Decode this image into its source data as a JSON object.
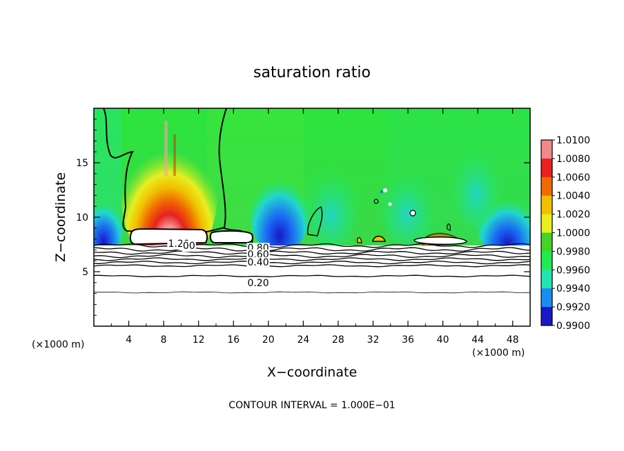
{
  "chart_data": {
    "type": "heatmap",
    "title": "saturation ratio",
    "xlabel": "X−coordinate",
    "ylabel": "Z−coordinate",
    "x_unit": "(×1000 m)",
    "xlim": [
      0,
      50
    ],
    "ylim": [
      0,
      20
    ],
    "x_ticks": [
      4,
      8,
      12,
      16,
      20,
      24,
      28,
      32,
      36,
      40,
      44,
      48
    ],
    "y_ticks": [
      5,
      10,
      15
    ],
    "footer": "CONTOUR INTERVAL = 1.000E−01",
    "colorbar": {
      "levels": [
        "1.0100",
        "1.0080",
        "1.0060",
        "1.0040",
        "1.0020",
        "1.0000",
        "0.9980",
        "0.9960",
        "0.9940",
        "0.9920",
        "0.9900"
      ],
      "colors": [
        "#f08a8a",
        "#e82020",
        "#f06a00",
        "#f0c000",
        "#e8ee20",
        "#44d428",
        "#22ea52",
        "#22e6b0",
        "#1a8cf2",
        "#1818c8",
        "#5a0a8a"
      ]
    },
    "contour_labels": [
      {
        "text": "1.20",
        "x": 8.5,
        "y": 7.6
      },
      {
        "text": "00",
        "x": 10.2,
        "y": 7.4
      },
      {
        "text": "0.80",
        "x": 17.6,
        "y": 7.2
      },
      {
        "text": "0.60",
        "x": 17.6,
        "y": 6.6
      },
      {
        "text": "0.40",
        "x": 17.6,
        "y": 5.9
      },
      {
        "text": "0.20",
        "x": 17.6,
        "y": 4.0
      }
    ],
    "contour_levels_below": [
      {
        "z": 7.4,
        "amp": 0.12
      },
      {
        "z": 7.05,
        "amp": 0.12
      },
      {
        "z": 6.75,
        "amp": 0.1
      },
      {
        "z": 6.45,
        "amp": 0.1
      },
      {
        "z": 6.15,
        "amp": 0.08
      },
      {
        "z": 5.85,
        "amp": 0.08
      },
      {
        "z": 5.55,
        "amp": 0.06
      },
      {
        "z": 4.6,
        "amp": 0.05
      },
      {
        "z": 3.1,
        "amp": 0.04
      }
    ]
  }
}
